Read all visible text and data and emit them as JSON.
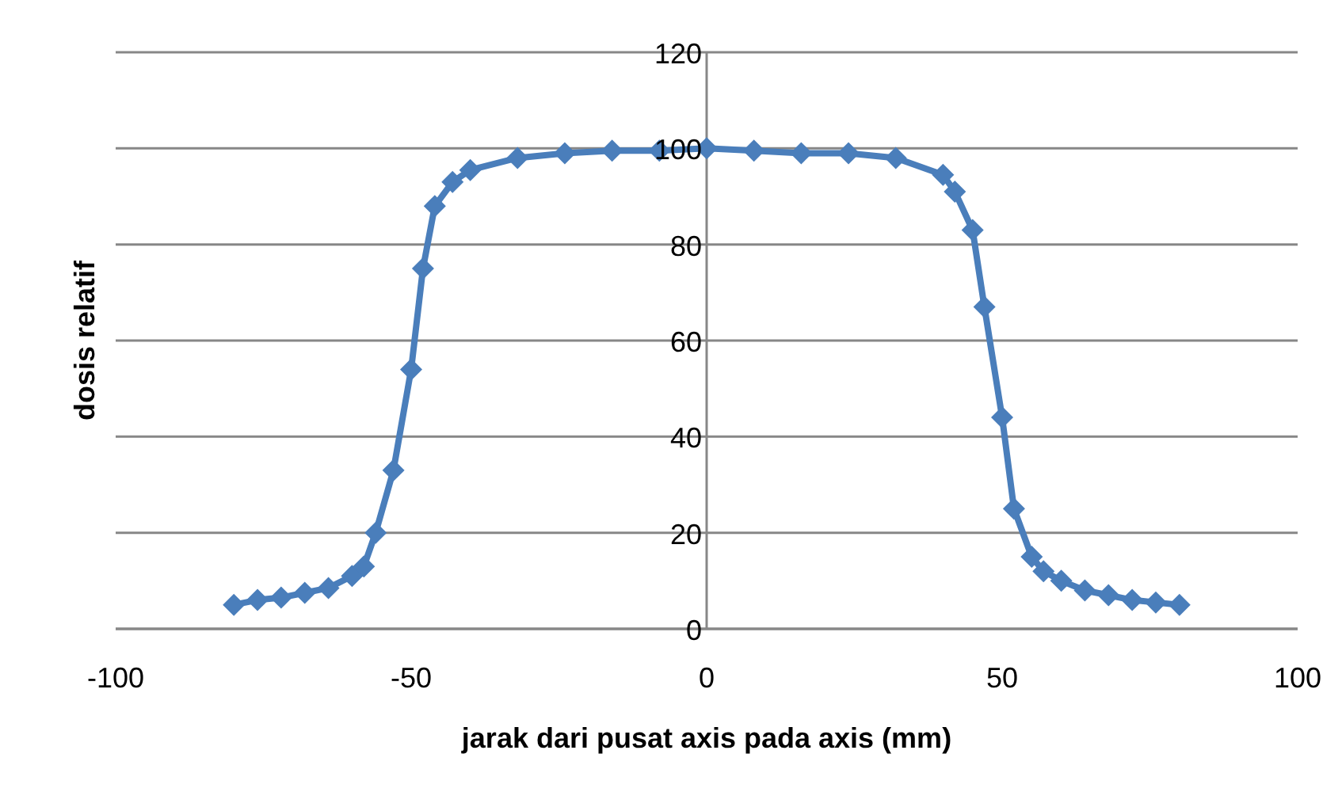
{
  "chart_data": {
    "type": "line",
    "xlabel": "jarak dari pusat axis pada axis (mm)",
    "ylabel": "dosis relatif",
    "x": [
      -80,
      -76,
      -72,
      -68,
      -64,
      -60,
      -58,
      -56,
      -53,
      -50,
      -48,
      -46,
      -43,
      -40,
      -32,
      -24,
      -16,
      -8,
      0,
      8,
      16,
      24,
      32,
      40,
      42,
      45,
      47,
      50,
      52,
      55,
      57,
      60,
      64,
      68,
      72,
      76,
      80
    ],
    "series": [
      {
        "color": "#4a7ebb",
        "values": [
          5,
          6,
          6.5,
          7.5,
          8.5,
          11,
          13,
          20,
          33,
          54,
          75,
          88,
          93,
          95.5,
          98,
          99,
          99.5,
          99.5,
          100,
          99.5,
          99,
          99,
          98,
          94.5,
          91,
          83,
          67,
          44,
          25,
          15,
          12,
          10,
          8,
          7,
          6,
          5.5,
          5
        ]
      }
    ],
    "xlim": [
      -100,
      100
    ],
    "xticks": [
      -100,
      -50,
      0,
      50,
      100
    ],
    "ylim": [
      0,
      120
    ],
    "yticks": [
      0,
      20,
      40,
      60,
      80,
      100,
      120
    ],
    "grid": "y",
    "marker": "diamond",
    "line_style": "solid",
    "legend": false
  }
}
